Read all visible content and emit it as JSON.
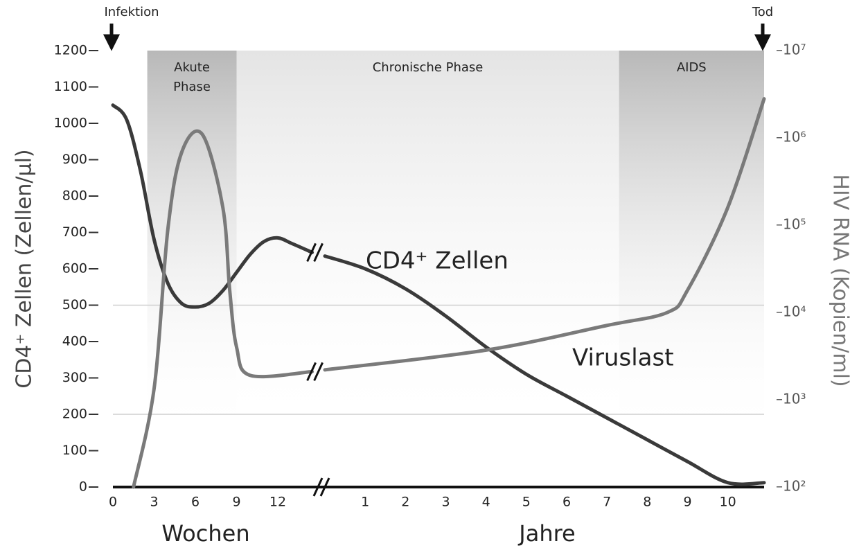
{
  "chart_data": {
    "type": "line",
    "ylabel": "CD4⁺ Zellen (Zellen/µl)",
    "y2label": "HIV RNA (Kopien/ml)",
    "ylim": [
      0,
      1200
    ],
    "yticks": [
      0,
      100,
      200,
      300,
      400,
      500,
      600,
      700,
      800,
      900,
      1000,
      1100,
      1200
    ],
    "y2lim": [
      100,
      10000000
    ],
    "y2scale": "log",
    "y2ticks": [
      {
        "value": 100,
        "label": "–10²"
      },
      {
        "value": 1000,
        "label": "–10³"
      },
      {
        "value": 10000,
        "label": "–10⁴"
      },
      {
        "value": 100000,
        "label": "–10⁵"
      },
      {
        "value": 1000000,
        "label": "–10⁶"
      },
      {
        "value": 10000000,
        "label": "–10⁷"
      }
    ],
    "reference_lines": [
      200,
      500
    ],
    "x_segments": [
      {
        "label": "Wochen",
        "xlim": [
          0,
          15
        ],
        "xticks": [
          0,
          3,
          6,
          9,
          12
        ]
      },
      {
        "label": "Jahre",
        "xlim": [
          0,
          10.9
        ],
        "xticks": [
          1,
          2,
          3,
          4,
          5,
          6,
          7,
          8,
          9,
          10
        ]
      }
    ],
    "phases": [
      {
        "label": [
          "Akute",
          "Phase"
        ],
        "from": {
          "segment": 0,
          "x": 2.5
        },
        "to": {
          "segment": 0,
          "x": 9
        },
        "color": "#bdbdbd"
      },
      {
        "label": [
          "Chronische Phase"
        ],
        "from": {
          "segment": 0,
          "x": 9
        },
        "to": {
          "segment": 1,
          "x": 7.3
        },
        "color": "#e6e6e6"
      },
      {
        "label": [
          "AIDS"
        ],
        "from": {
          "segment": 1,
          "x": 7.3
        },
        "to": {
          "segment": 1,
          "x": 10.9
        },
        "color": "#bdbdbd"
      }
    ],
    "annotations": [
      {
        "text": "Infektion",
        "segment": 0,
        "x": 0
      },
      {
        "text": "Tod",
        "segment": 1,
        "x": 10.9
      }
    ],
    "series": [
      {
        "name": "CD4⁺ Zellen",
        "color": "#3a3a3a",
        "axis": "y",
        "segments": [
          {
            "x": [
              0,
              1,
              2,
              3,
              4,
              5,
              6,
              7,
              8,
              9,
              10,
              11,
              12,
              13,
              14.5
            ],
            "values": [
              1050,
              1010,
              870,
              680,
              560,
              505,
              495,
              505,
              540,
              590,
              640,
              675,
              685,
              670,
              645
            ]
          },
          {
            "x": [
              0,
              1,
              2,
              3,
              4,
              5,
              6,
              7,
              8,
              9,
              10,
              10.9
            ],
            "values": [
              635,
              600,
              545,
              470,
              385,
              310,
              250,
              190,
              130,
              70,
              12,
              12
            ]
          }
        ]
      },
      {
        "name": "Viruslast",
        "color": "#7a7a7a",
        "axis": "y2",
        "segments": [
          {
            "x": [
              1.5,
              3,
              4,
              5,
              6.5,
              8,
              8.5,
              9,
              10,
              14.5
            ],
            "values": [
              100,
              1350,
              90000,
              680000,
              1100000,
              160000,
              18000,
              4000,
              1900,
              2100
            ]
          },
          {
            "x": [
              0,
              4,
              7,
              8.5,
              9,
              10,
              10.9
            ],
            "values": [
              2200,
              3700,
              7100,
              10000,
              18000,
              160000,
              2800000
            ]
          }
        ]
      }
    ]
  }
}
